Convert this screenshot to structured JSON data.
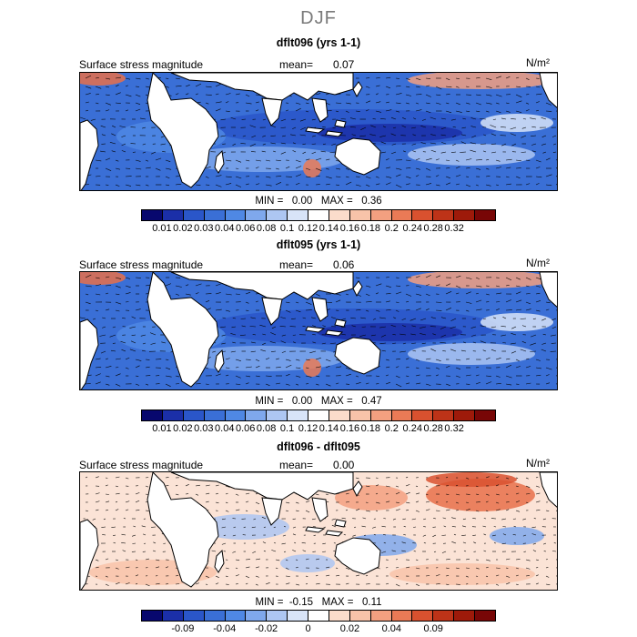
{
  "season": "DJF",
  "colors": {
    "scale": [
      "#08086e",
      "#1b2fa8",
      "#2a56c9",
      "#3a6fd6",
      "#4f88e4",
      "#7fa8ec",
      "#adc6f2",
      "#d8e4f8",
      "#ffffff",
      "#fbdccb",
      "#f8c3a9",
      "#f3a080",
      "#ea7a56",
      "#d9512f",
      "#bd3318",
      "#9e1a0a",
      "#780606"
    ],
    "land": "#ffffff",
    "coast": "#000000"
  },
  "panels": [
    {
      "title": "dflt096 (yrs 1-1)",
      "label": "Surface stress magnitude",
      "mean_label": "mean=",
      "mean_value": "0.07",
      "units": "N/m²",
      "stats": "MIN =   0.00   MAX =   0.36",
      "ticks": [
        "0.01",
        "0.02",
        "0.03",
        "0.04",
        "0.06",
        "0.08",
        "0.1",
        "0.12",
        "0.14",
        "0.16",
        "0.18",
        "0.2",
        "0.24",
        "0.28",
        "0.32"
      ]
    },
    {
      "title": "dflt095 (yrs 1-1)",
      "label": "Surface stress magnitude",
      "mean_label": "mean=",
      "mean_value": "0.06",
      "units": "N/m²",
      "stats": "MIN =   0.00   MAX =   0.47",
      "ticks": [
        "0.01",
        "0.02",
        "0.03",
        "0.04",
        "0.06",
        "0.08",
        "0.1",
        "0.12",
        "0.14",
        "0.16",
        "0.18",
        "0.2",
        "0.24",
        "0.28",
        "0.32"
      ]
    },
    {
      "title": "dflt096 - dflt095",
      "label": "Surface stress magnitude",
      "mean_label": "mean=",
      "mean_value": "0.00",
      "units": "N/m²",
      "stats": "MIN =  -0.15   MAX =   0.11",
      "ticks": [
        "-0.09",
        "-0.04",
        "-0.02",
        "0",
        "0.02",
        "0.04",
        "0.09"
      ]
    }
  ]
}
